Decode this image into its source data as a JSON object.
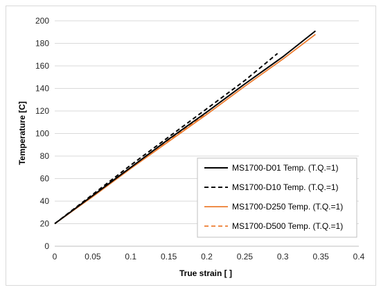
{
  "chart_data": {
    "type": "line",
    "title": "",
    "xlabel": "True strain [  ]",
    "ylabel": "Temperature [C]",
    "xlim": [
      0,
      0.4
    ],
    "ylim": [
      0,
      200
    ],
    "xticks": [
      "0",
      "0.05",
      "0.1",
      "0.15",
      "0.2",
      "0.25",
      "0.3",
      "0.35",
      "0.4"
    ],
    "yticks": [
      "0",
      "20",
      "40",
      "60",
      "80",
      "100",
      "120",
      "140",
      "160",
      "180",
      "200"
    ],
    "grid": true,
    "legend_position": "bottom-right",
    "series": [
      {
        "name": "MS1700-D01 Temp.  (T.Q.=1)",
        "color": "#000000",
        "dash": "solid",
        "x": [
          0,
          0.05,
          0.1,
          0.15,
          0.2,
          0.25,
          0.3,
          0.343
        ],
        "y": [
          20,
          45,
          70,
          95,
          119,
          144,
          168,
          191
        ]
      },
      {
        "name": "MS1700-D10 Temp.  (T.Q.=1)",
        "color": "#000000",
        "dash": "dashed",
        "x": [
          0,
          0.05,
          0.1,
          0.15,
          0.2,
          0.25,
          0.293
        ],
        "y": [
          20,
          46,
          72,
          97,
          122,
          147,
          171
        ]
      },
      {
        "name": "MS1700-D250 Temp.  (T.Q.=1)",
        "color": "#ed7d31",
        "dash": "solid",
        "x": [
          0,
          0.05,
          0.1,
          0.15,
          0.2,
          0.25,
          0.3,
          0.343
        ],
        "y": [
          20,
          44,
          69,
          93,
          117,
          142,
          166,
          188
        ]
      },
      {
        "name": "MS1700-D500 Temp.  (T.Q.=1)",
        "color": "#ed7d31",
        "dash": "dashed",
        "x": [
          0,
          0.05,
          0.1,
          0.15,
          0.2
        ],
        "y": [
          20,
          45,
          70,
          94,
          118
        ]
      }
    ]
  }
}
